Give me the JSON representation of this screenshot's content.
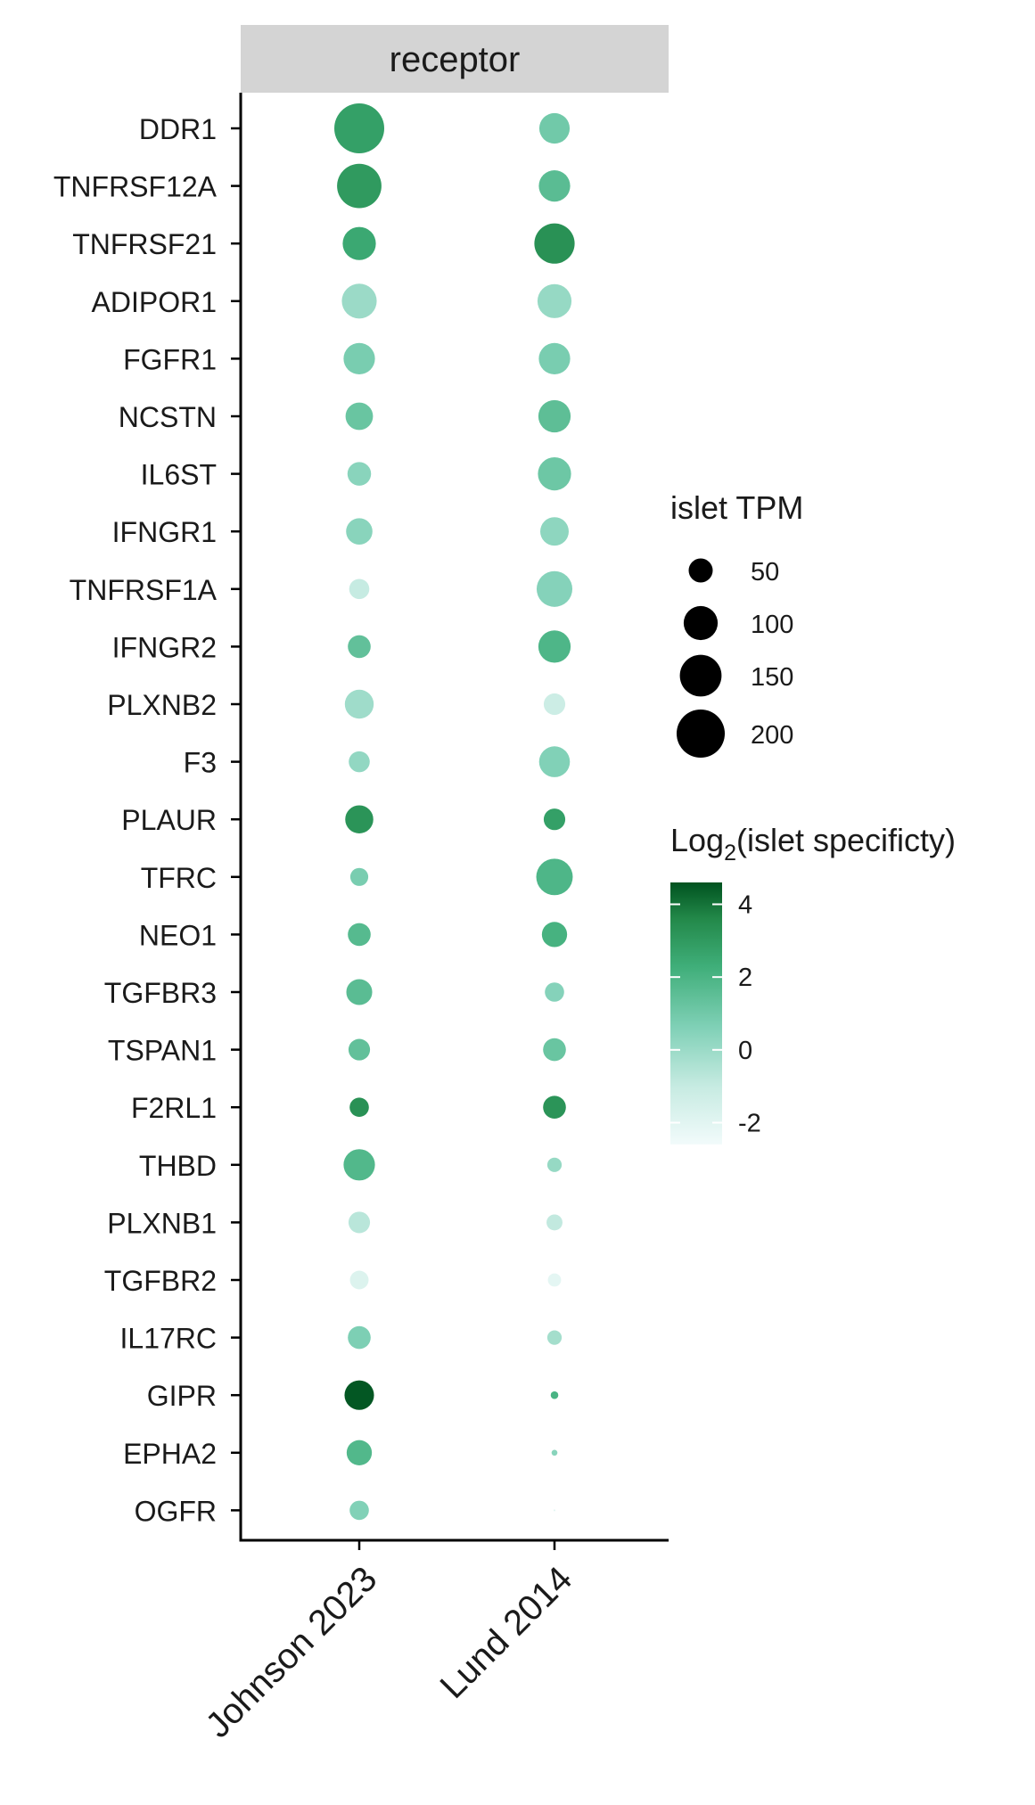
{
  "chart_data": {
    "type": "scatter",
    "facet_label": "receptor",
    "categories_x": [
      "Johnson 2023",
      "Lund 2014"
    ],
    "genes": [
      "DDR1",
      "TNFRSF12A",
      "TNFRSF21",
      "ADIPOR1",
      "FGFR1",
      "NCSTN",
      "IL6ST",
      "IFNGR1",
      "TNFRSF1A",
      "IFNGR2",
      "PLXNB2",
      "F3",
      "PLAUR",
      "TFRC",
      "NEO1",
      "TGFBR3",
      "TSPAN1",
      "F2RL1",
      "THBD",
      "PLXNB1",
      "TGFBR2",
      "IL17RC",
      "GIPR",
      "EPHA2",
      "OGFR"
    ],
    "series": [
      {
        "name": "Johnson 2023",
        "tpm": [
          215,
          170,
          95,
          105,
          85,
          65,
          48,
          60,
          35,
          45,
          72,
          38,
          68,
          28,
          45,
          58,
          40,
          32,
          85,
          40,
          30,
          45,
          75,
          55,
          32
        ],
        "specificity": [
          2.8,
          3.0,
          2.5,
          0.0,
          0.8,
          1.2,
          0.4,
          0.4,
          -1.0,
          1.4,
          -0.1,
          0.2,
          3.2,
          0.8,
          1.7,
          1.6,
          1.4,
          3.3,
          1.8,
          -0.7,
          -1.8,
          0.7,
          4.5,
          1.8,
          0.6
        ]
      },
      {
        "name": "Lund 2014",
        "tpm": [
          80,
          85,
          140,
          100,
          85,
          90,
          95,
          70,
          110,
          90,
          40,
          82,
          40,
          115,
          55,
          32,
          45,
          45,
          18,
          22,
          15,
          18,
          5,
          3,
          0.3
        ],
        "specificity": [
          1.0,
          1.6,
          3.3,
          0.1,
          0.8,
          1.5,
          1.1,
          0.3,
          0.5,
          1.9,
          -1.2,
          0.6,
          2.8,
          1.9,
          2.1,
          0.5,
          1.2,
          3.2,
          0.1,
          -0.9,
          -2.1,
          -0.2,
          2.0,
          0.4,
          -2.0
        ]
      }
    ],
    "size_legend": {
      "title": "islet TPM",
      "breaks": [
        50,
        100,
        150,
        200
      ],
      "labels": [
        "50",
        "100",
        "150",
        "200"
      ]
    },
    "color_legend": {
      "title_main": "Log",
      "title_sub": "2",
      "title_rest": "(islet specificty)",
      "ticks": [
        4,
        2,
        0,
        -2
      ],
      "tick_labels": [
        "4",
        "2",
        "0",
        "-2"
      ],
      "range": [
        -2.6,
        4.6
      ],
      "gradient": [
        "#f2fbfb",
        "#c7ebe2",
        "#7fd0b6",
        "#3fae79",
        "#23894a",
        "#00521f"
      ]
    }
  }
}
